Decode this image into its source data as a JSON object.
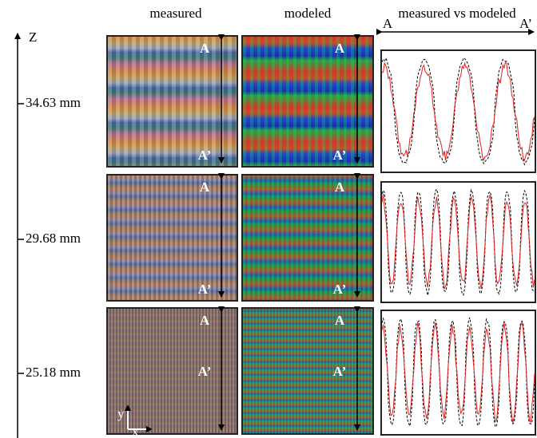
{
  "headers": [
    "measured",
    "modeled",
    "measured vs modeled"
  ],
  "profile_axis": {
    "start": "A",
    "end": "A’"
  },
  "z_axis": {
    "label": "Z"
  },
  "rows": [
    {
      "z": "34.63 mm",
      "measured_labels": [
        "A",
        "A’"
      ],
      "modeled_labels": [
        "A",
        "A’"
      ]
    },
    {
      "z": "29.68 mm",
      "measured_labels": [
        "A",
        "A’"
      ],
      "modeled_labels": [
        "A",
        "A’"
      ]
    },
    {
      "z": "25.18 mm",
      "measured_labels": [
        "A",
        "A’"
      ],
      "modeled_labels": [
        "A",
        "A’"
      ]
    }
  ],
  "coordinate_axes": {
    "y": "y",
    "x": "x"
  }
}
